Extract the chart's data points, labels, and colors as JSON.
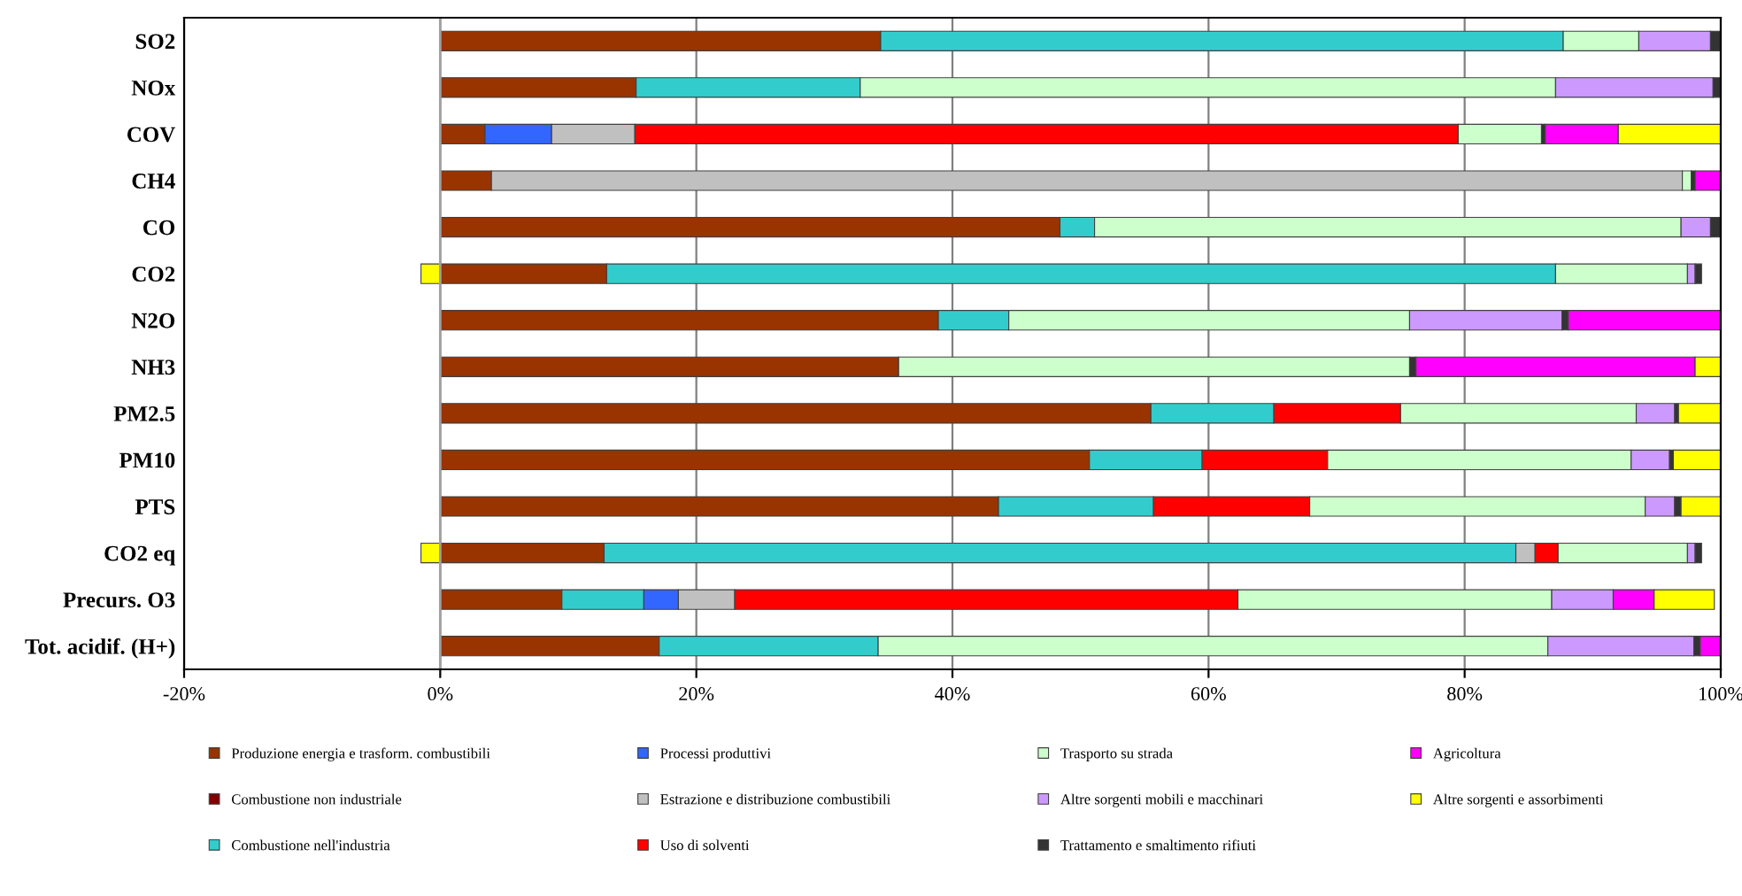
{
  "chart_data": {
    "type": "bar",
    "orientation": "horizontal",
    "stacked": true,
    "categories": [
      "SO2",
      "NOx",
      "COV",
      "CH4",
      "CO",
      "CO2",
      "N2O",
      "NH3",
      "PM2.5",
      "PM10",
      "PTS",
      "CO2 eq",
      "Precurs. O3",
      "Tot. acidif. (H+)"
    ],
    "series": [
      {
        "name": "Produzione energia e trasform. combustibili",
        "color": "#993300",
        "values": [
          34.4,
          15.3,
          3.5,
          4.0,
          48.4,
          13.0,
          38.9,
          35.8,
          55.5,
          50.7,
          43.6,
          12.8,
          9.5,
          17.1
        ]
      },
      {
        "name": "Combustione non industriale",
        "color": "#800000",
        "values": [
          null,
          null,
          null,
          null,
          null,
          null,
          null,
          null,
          null,
          null,
          null,
          null,
          null,
          null
        ]
      },
      {
        "name": "Combustione nell'industria",
        "color": "#33cccc",
        "values": [
          53.3,
          17.5,
          null,
          null,
          2.7,
          74.1,
          5.5,
          null,
          9.6,
          8.8,
          12.1,
          71.2,
          6.4,
          17.1
        ]
      },
      {
        "name": "Processi produttivi",
        "color": "#3366ff",
        "values": [
          null,
          null,
          5.2,
          null,
          null,
          null,
          null,
          null,
          null,
          null,
          null,
          null,
          2.7,
          null
        ]
      },
      {
        "name": "Estrazione e distribuzione combustibili",
        "color": "#c0c0c0",
        "values": [
          null,
          null,
          6.5,
          93.0,
          null,
          null,
          null,
          null,
          null,
          null,
          null,
          1.5,
          4.4,
          null
        ]
      },
      {
        "name": "Uso di solventi",
        "color": "#ff0000",
        "values": [
          null,
          null,
          64.3,
          null,
          null,
          null,
          null,
          null,
          9.9,
          9.8,
          12.2,
          1.8,
          39.3,
          null
        ]
      },
      {
        "name": "Trasporto su strada",
        "color": "#ccffcc",
        "values": [
          5.9,
          54.3,
          6.5,
          0.7,
          45.8,
          10.3,
          31.3,
          39.9,
          18.4,
          23.7,
          26.2,
          10.1,
          24.5,
          52.3
        ]
      },
      {
        "name": "Altre sorgenti mobili e macchinari",
        "color": "#cc99ff",
        "values": [
          5.6,
          12.3,
          null,
          null,
          2.3,
          0.6,
          11.9,
          null,
          3.0,
          3.0,
          2.3,
          0.6,
          4.8,
          11.4
        ]
      },
      {
        "name": "Trattamento e smaltimento rifiuti",
        "color": "#333333",
        "values": [
          0.8,
          0.6,
          0.3,
          0.3,
          0.8,
          0.5,
          0.5,
          0.5,
          0.3,
          0.3,
          0.5,
          0.5,
          null,
          0.5
        ]
      },
      {
        "name": "Agricoltura",
        "color": "#ff00ff",
        "values": [
          null,
          null,
          5.7,
          2.0,
          null,
          null,
          11.9,
          21.8,
          null,
          null,
          null,
          null,
          3.2,
          1.6
        ]
      },
      {
        "name": "Altre sorgenti e assorbimenti",
        "color": "#ffff00",
        "values": [
          null,
          null,
          8.0,
          null,
          null,
          -1.5,
          null,
          2.0,
          3.3,
          3.7,
          3.1,
          -1.5,
          4.7,
          null
        ]
      }
    ],
    "xlim": [
      -20,
      100
    ],
    "xticks": [
      {
        "value": -20,
        "label": "-20%"
      },
      {
        "value": 0,
        "label": "0%"
      },
      {
        "value": 20,
        "label": "20%"
      },
      {
        "value": 40,
        "label": "40%"
      },
      {
        "value": 60,
        "label": "60%"
      },
      {
        "value": 80,
        "label": "80%"
      },
      {
        "value": 100,
        "label": "100%"
      }
    ],
    "grid": "x",
    "legend": "bottom"
  }
}
